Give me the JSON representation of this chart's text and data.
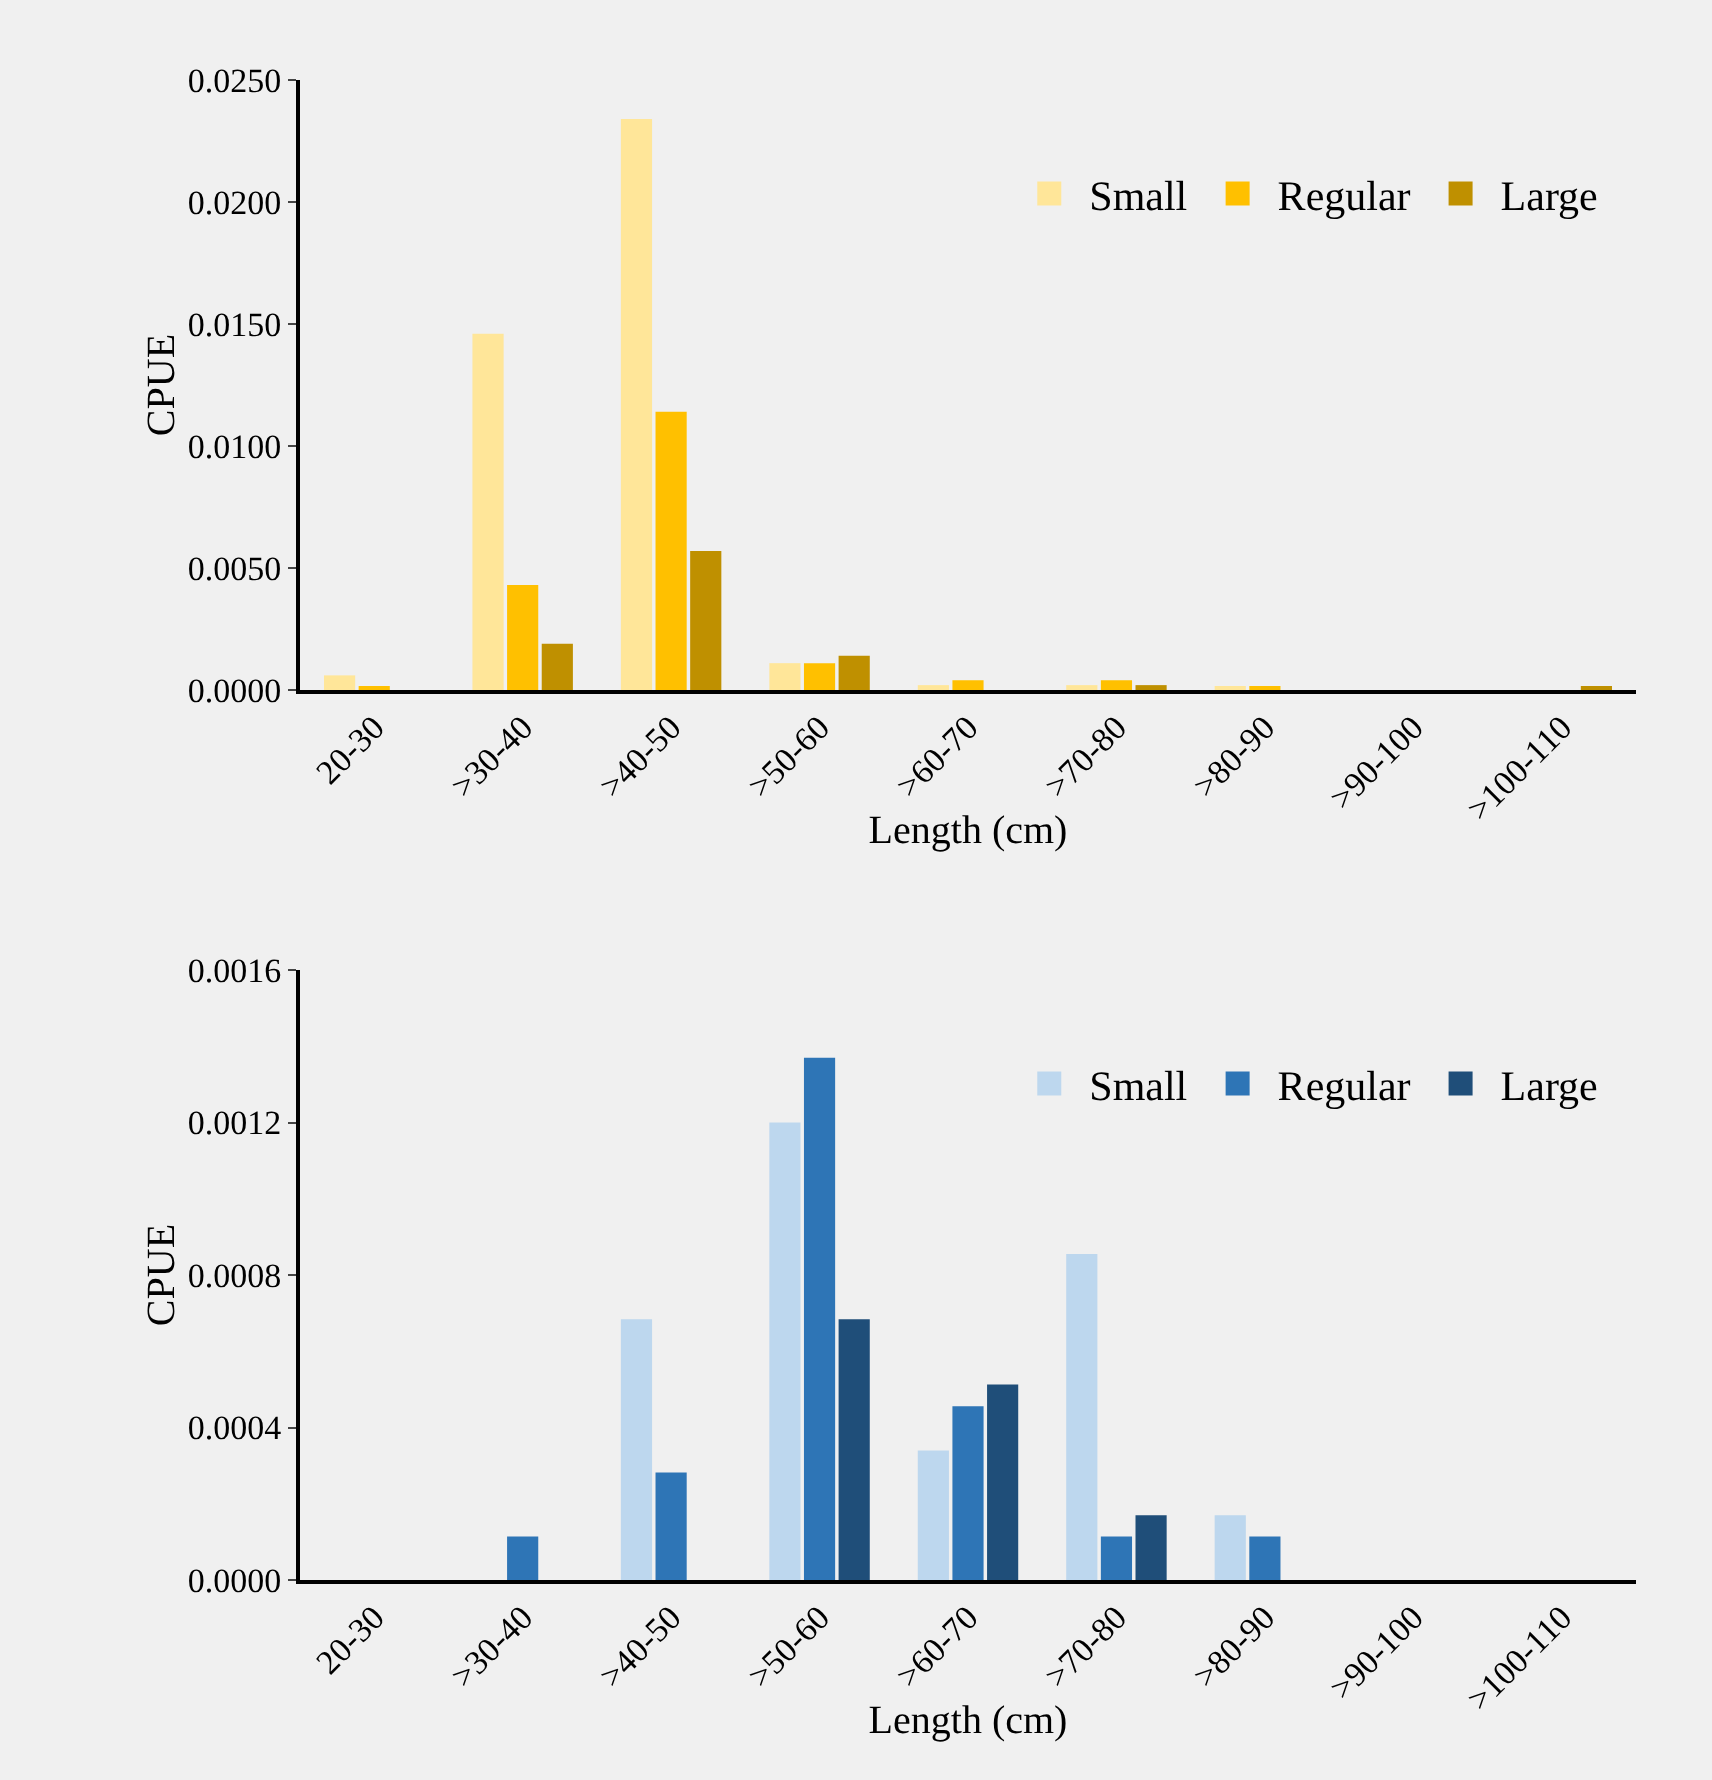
{
  "chart_data": [
    {
      "type": "bar",
      "xlabel": "Length (cm)",
      "ylabel": "CPUE",
      "categories": [
        "20-30",
        ">30-40",
        ">40-50",
        ">50-60",
        ">60-70",
        ">70-80",
        ">80-90",
        ">90-100",
        ">100-110"
      ],
      "series": [
        {
          "name": "Small",
          "color": "#ffe699",
          "values": [
            0.0006,
            0.0146,
            0.0234,
            0.0011,
            0.0002,
            0.0002,
            0.0001,
            0,
            0
          ]
        },
        {
          "name": "Regular",
          "color": "#ffc000",
          "values": [
            0.0001,
            0.0043,
            0.0114,
            0.0011,
            0.0004,
            0.0004,
            0.0001,
            0,
            0
          ]
        },
        {
          "name": "Large",
          "color": "#bf9000",
          "values": [
            0,
            0.0019,
            0.0057,
            0.0014,
            0,
            0.0002,
            0,
            0,
            0.0001
          ]
        }
      ],
      "ylim": [
        0,
        0.025
      ],
      "yticks": [
        {
          "value": 0,
          "label": "0.0000"
        },
        {
          "value": 0.005,
          "label": "0.0050"
        },
        {
          "value": 0.01,
          "label": "0.0100"
        },
        {
          "value": 0.015,
          "label": "0.0150"
        },
        {
          "value": 0.02,
          "label": "0.0200"
        },
        {
          "value": 0.025,
          "label": "0.0250"
        }
      ],
      "grid": false,
      "legend": "top right"
    },
    {
      "type": "bar",
      "xlabel": "Length (cm)",
      "ylabel": "CPUE",
      "categories": [
        "20-30",
        ">30-40",
        ">40-50",
        ">50-60",
        ">60-70",
        ">70-80",
        ">80-90",
        ">90-100",
        ">100-110"
      ],
      "series": [
        {
          "name": "Small",
          "color": "#bdd7ee",
          "values": [
            0,
            0,
            0.000684,
            0.0012,
            0.00034,
            0.000855,
            0.00017,
            0,
            0
          ]
        },
        {
          "name": "Regular",
          "color": "#2e75b6",
          "values": [
            0,
            0.000114,
            0.000282,
            0.00137,
            0.000456,
            0.000114,
            0.000114,
            0,
            0
          ]
        },
        {
          "name": "Large",
          "color": "#1f4e79",
          "values": [
            0,
            0,
            0,
            0.000684,
            0.000513,
            0.00017,
            0,
            0,
            0
          ]
        }
      ],
      "ylim": [
        0,
        0.0016
      ],
      "yticks": [
        {
          "value": 0,
          "label": "0.0000"
        },
        {
          "value": 0.0004,
          "label": "0.0004"
        },
        {
          "value": 0.0008,
          "label": "0.0008"
        },
        {
          "value": 0.0012,
          "label": "0.0012"
        },
        {
          "value": 0.0016,
          "label": "0.0016"
        }
      ],
      "grid": false,
      "legend": "top right"
    }
  ]
}
